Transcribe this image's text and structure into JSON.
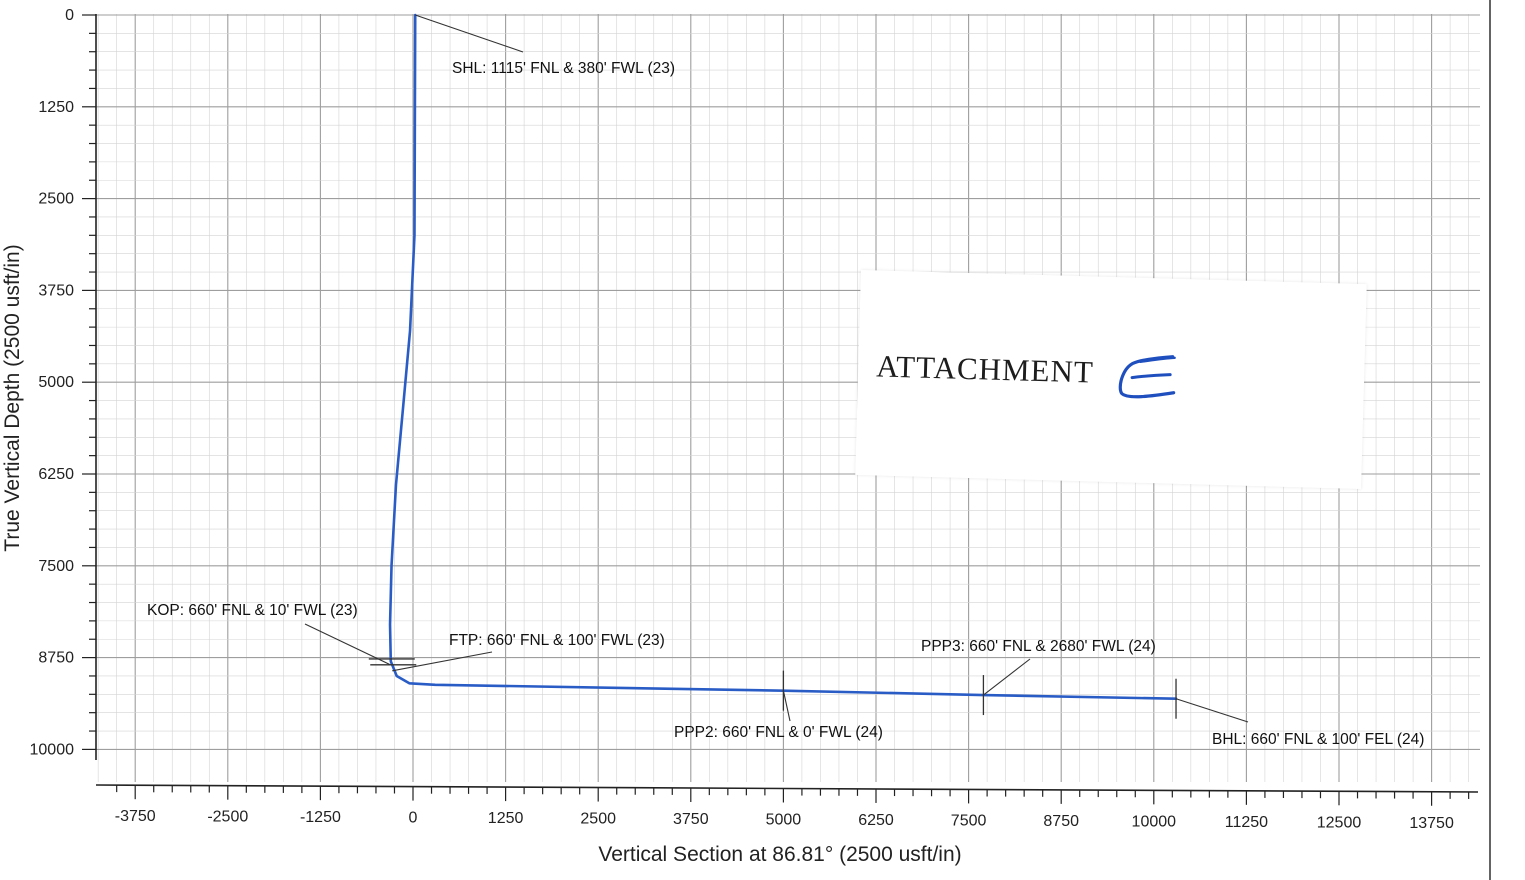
{
  "chart_data": {
    "type": "line",
    "title": "",
    "xlabel": "Vertical Section at 86.81° (2500 usft/in)",
    "ylabel": "True Vertical Depth (2500 usft/in)",
    "xlim": [
      -4500,
      14500
    ],
    "ylim": [
      0,
      10200
    ],
    "y_inverted": true,
    "grid": true,
    "x_ticks": [
      -3750,
      -2500,
      -1250,
      0,
      1250,
      2500,
      3750,
      5000,
      6250,
      7500,
      8750,
      10000,
      11250,
      12500,
      13750
    ],
    "y_ticks": [
      0,
      1250,
      2500,
      3750,
      5000,
      6250,
      7500,
      8750,
      10000
    ],
    "series": [
      {
        "color": "#2a5cc6",
        "points": [
          [
            30,
            0
          ],
          [
            20,
            3000
          ],
          [
            -40,
            4300
          ],
          [
            -130,
            5300
          ],
          [
            -230,
            6400
          ],
          [
            -290,
            7500
          ],
          [
            -310,
            8300
          ],
          [
            -300,
            8800
          ],
          [
            -220,
            9000
          ],
          [
            -50,
            9100
          ],
          [
            300,
            9120
          ],
          [
            5000,
            9200
          ],
          [
            7700,
            9260
          ],
          [
            10300,
            9310
          ]
        ]
      }
    ],
    "annotations": [
      {
        "text": "SHL: 1115' FNL & 380' FWL (23)",
        "x": 30,
        "y": 0
      },
      {
        "text": "KOP: 660' FNL & 10' FWL (23)",
        "x": -300,
        "y": 8850
      },
      {
        "text": "FTP: 660' FNL & 100' FWL (23)",
        "x": -280,
        "y": 8930
      },
      {
        "text": "PPP2: 660' FNL & 0' FWL (24)",
        "x": 5000,
        "y": 9200
      },
      {
        "text": "PPP3: 660' FNL & 2680' FWL (24)",
        "x": 7700,
        "y": 9260
      },
      {
        "text": "BHL: 660' FNL & 100' FEL (24)",
        "x": 10300,
        "y": 9310
      }
    ]
  },
  "stamp": {
    "label": "ATTACHMENT",
    "handwritten_letter": "E",
    "ink_color": "#1f4fbf"
  }
}
